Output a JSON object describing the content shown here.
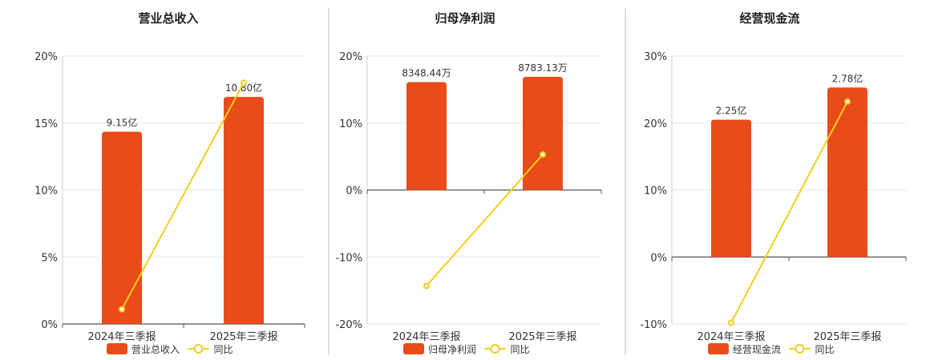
{
  "colors": {
    "bar": "#E84C1A",
    "line": "#F2CE1B",
    "grid": "#e6e6e6",
    "axis": "#555555",
    "divider": "#bdbdbd"
  },
  "chart_data": [
    {
      "type": "bar",
      "title": "营业总收入",
      "categories": [
        "2024年三季报",
        "2025年三季报"
      ],
      "series": [
        {
          "name": "营业总收入",
          "type": "bar",
          "values": [
            14.35,
            16.95
          ],
          "labels": [
            "9.15亿",
            "10.80亿"
          ]
        },
        {
          "name": "同比",
          "type": "line",
          "values": [
            1.1,
            18.0
          ]
        }
      ],
      "ylim": [
        0,
        20
      ],
      "yticks": [
        0,
        5,
        10,
        15,
        20
      ],
      "ytick_labels": [
        "0%",
        "5%",
        "10%",
        "15%",
        "20%"
      ],
      "grid": true,
      "legend": "bottom"
    },
    {
      "type": "bar",
      "title": "归母净利润",
      "categories": [
        "2024年三季报",
        "2025年三季报"
      ],
      "series": [
        {
          "name": "归母净利润",
          "type": "bar",
          "values": [
            16.1,
            16.9
          ],
          "labels": [
            "8348.44万",
            "8783.13万"
          ]
        },
        {
          "name": "同比",
          "type": "line",
          "values": [
            -14.3,
            5.3
          ]
        }
      ],
      "ylim": [
        -20,
        20
      ],
      "yticks": [
        -20,
        -10,
        0,
        10,
        20
      ],
      "ytick_labels": [
        "-20%",
        "-10%",
        "0%",
        "10%",
        "20%"
      ],
      "grid": true,
      "legend": "bottom"
    },
    {
      "type": "bar",
      "title": "经营现金流",
      "categories": [
        "2024年三季报",
        "2025年三季报"
      ],
      "series": [
        {
          "name": "经营现金流",
          "type": "bar",
          "values": [
            20.5,
            25.3
          ],
          "labels": [
            "2.25亿",
            "2.78亿"
          ]
        },
        {
          "name": "同比",
          "type": "line",
          "values": [
            -9.8,
            23.2
          ]
        }
      ],
      "ylim": [
        -10,
        30
      ],
      "yticks": [
        -10,
        0,
        10,
        20,
        30
      ],
      "ytick_labels": [
        "-10%",
        "0%",
        "10%",
        "20%",
        "30%"
      ],
      "grid": true,
      "legend": "bottom"
    }
  ]
}
